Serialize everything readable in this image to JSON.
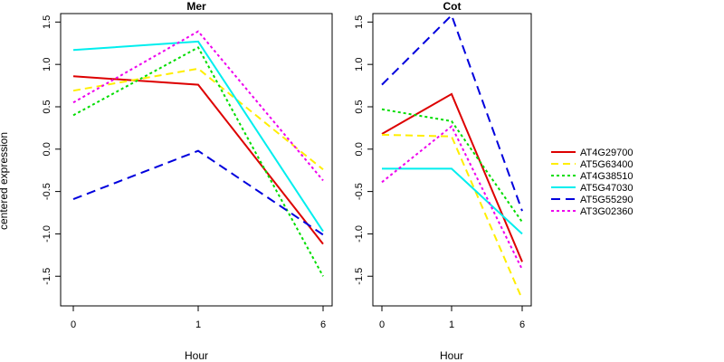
{
  "figure": {
    "ylabel": "centered expression"
  },
  "series_styles": [
    {
      "name": "AT4G29700",
      "color": "#dd0000",
      "dash": "solid"
    },
    {
      "name": "AT5G63400",
      "color": "#ffee00",
      "dash": "dashed"
    },
    {
      "name": "AT4G38510",
      "color": "#00dd00",
      "dash": "dotted"
    },
    {
      "name": "AT5G47030",
      "color": "#00eeee",
      "dash": "solid"
    },
    {
      "name": "AT5G55290",
      "color": "#0000dd",
      "dash": "longdash"
    },
    {
      "name": "AT3G02360",
      "color": "#ee00ee",
      "dash": "dotted"
    }
  ],
  "legend": {
    "placement": "right",
    "entries": [
      "AT4G29700",
      "AT5G63400",
      "AT4G38510",
      "AT5G47030",
      "AT5G55290",
      "AT3G02360"
    ]
  },
  "chart_data": [
    {
      "type": "line",
      "title": "Mer",
      "xlabel": "Hour",
      "ylabel": "centered expression",
      "categories": [
        "0",
        "1",
        "6"
      ],
      "ylim": [
        -1.85,
        1.6
      ],
      "yticks": [
        -1.5,
        -1.0,
        -0.5,
        0.0,
        0.5,
        1.0,
        1.5
      ],
      "ytick_labels": [
        "-1.5",
        "-1.0",
        "-0.5",
        "0.0",
        "0.5",
        "1.0",
        "1.5"
      ],
      "series": [
        {
          "name": "AT4G29700",
          "values": [
            0.86,
            0.76,
            -1.12
          ]
        },
        {
          "name": "AT5G63400",
          "values": [
            0.69,
            0.95,
            -0.24
          ]
        },
        {
          "name": "AT4G38510",
          "values": [
            0.4,
            1.2,
            -1.5
          ]
        },
        {
          "name": "AT5G47030",
          "values": [
            1.17,
            1.27,
            -0.97
          ]
        },
        {
          "name": "AT5G55290",
          "values": [
            -0.59,
            -0.02,
            -1.01
          ]
        },
        {
          "name": "AT3G02360",
          "values": [
            0.55,
            1.39,
            -0.37
          ]
        }
      ]
    },
    {
      "type": "line",
      "title": "Cot",
      "xlabel": "Hour",
      "ylabel": "",
      "categories": [
        "0",
        "1",
        "6"
      ],
      "ylim": [
        -1.85,
        1.6
      ],
      "yticks": [
        -1.5,
        -1.0,
        -0.5,
        0.0,
        0.5,
        1.0,
        1.5
      ],
      "ytick_labels": [
        "-1.5",
        "-1.0",
        "-0.5",
        "0.0",
        "0.5",
        "1.0",
        "1.5"
      ],
      "series": [
        {
          "name": "AT4G29700",
          "values": [
            0.18,
            0.65,
            -1.33
          ]
        },
        {
          "name": "AT5G63400",
          "values": [
            0.17,
            0.15,
            -1.77
          ]
        },
        {
          "name": "AT4G38510",
          "values": [
            0.47,
            0.33,
            -0.86
          ]
        },
        {
          "name": "AT5G47030",
          "values": [
            -0.23,
            -0.23,
            -1.0
          ]
        },
        {
          "name": "AT5G55290",
          "values": [
            0.76,
            1.58,
            -0.73
          ]
        },
        {
          "name": "AT3G02360",
          "values": [
            -0.39,
            0.27,
            -1.42
          ]
        }
      ]
    }
  ]
}
